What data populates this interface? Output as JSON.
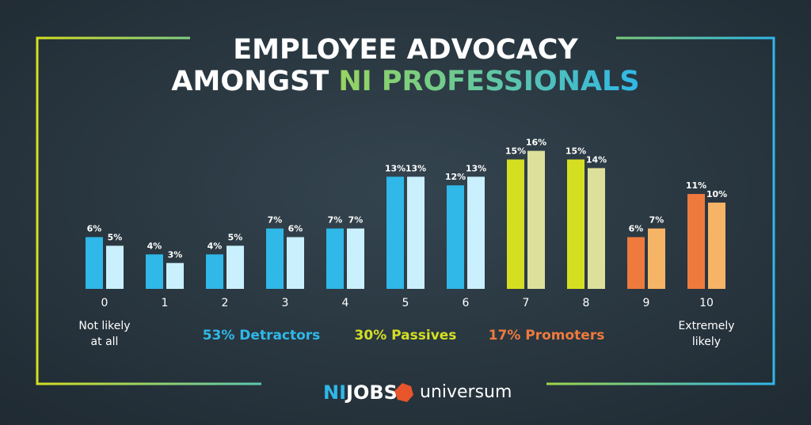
{
  "chart_data": {
    "type": "bar",
    "title_line1": "EMPLOYEE ADVOCACY",
    "title_line2": "AMONGST",
    "title_highlight": "NI PROFESSIONALS",
    "categories": [
      "0",
      "1",
      "2",
      "3",
      "4",
      "5",
      "6",
      "7",
      "8",
      "9",
      "10"
    ],
    "series": [
      {
        "values": [
          6,
          4,
          4,
          7,
          7,
          13,
          12,
          15,
          15,
          6,
          11
        ],
        "value_labels": [
          "6%",
          "4%",
          "4%",
          "7%",
          "7%",
          "13%",
          "12%",
          "15%",
          "15%",
          "6%",
          "11%"
        ],
        "colors": [
          "#2fb8e8",
          "#2fb8e8",
          "#2fb8e8",
          "#2fb8e8",
          "#2fb8e8",
          "#2fb8e8",
          "#2fb8e8",
          "#d5df22",
          "#d5df22",
          "#ef7a3d",
          "#ef7a3d"
        ]
      },
      {
        "values": [
          5,
          3,
          5,
          6,
          7,
          13,
          13,
          16,
          14,
          7,
          10
        ],
        "value_labels": [
          "5%",
          "3%",
          "5%",
          "6%",
          "7%",
          "13%",
          "13%",
          "16%",
          "14%",
          "7%",
          "10%"
        ],
        "colors": [
          "#c9f0fc",
          "#c9f0fc",
          "#c9f0fc",
          "#c9f0fc",
          "#c9f0fc",
          "#c9f0fc",
          "#c9f0fc",
          "#dde09b",
          "#dde09b",
          "#f6b467",
          "#f6b467"
        ]
      }
    ],
    "low_anchor": [
      "Not likely",
      "at all"
    ],
    "high_anchor": [
      "Extremely",
      "likely"
    ],
    "groups": [
      {
        "label": "53% Detractors",
        "color": "#2fb8e8"
      },
      {
        "label": "30% Passives",
        "color": "#d5df22"
      },
      {
        "label": "17% Promoters",
        "color": "#ef7a3d"
      }
    ]
  },
  "footer": {
    "logo1_a": "NI",
    "logo1_b": "JOBS",
    "logo2": "universum"
  }
}
